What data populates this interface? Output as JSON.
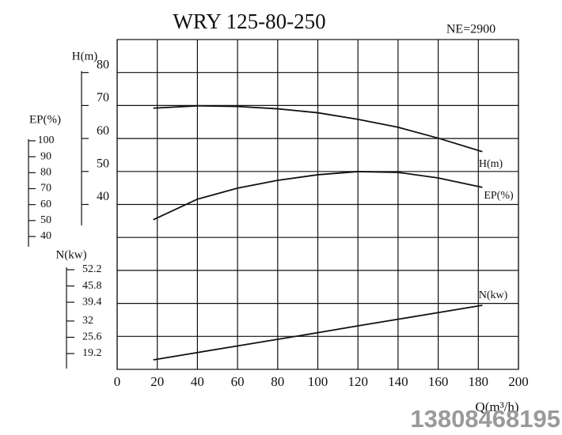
{
  "chart_data": {
    "type": "line",
    "title": "WRY 125-80-250",
    "subtitle": "NE=2900",
    "x_label": "Q(m³/h)",
    "xlim": [
      0,
      200
    ],
    "xticks": [
      0,
      20,
      40,
      60,
      80,
      100,
      120,
      140,
      160,
      180,
      200
    ],
    "grid": true,
    "axes": [
      {
        "label": "H(m)",
        "ylim": [
          40,
          80
        ],
        "yticks": [
          40,
          50,
          60,
          70,
          80
        ]
      },
      {
        "label": "EP(%)",
        "ylim": [
          40,
          100
        ],
        "yticks": [
          40,
          50,
          60,
          70,
          80,
          90,
          100
        ]
      },
      {
        "label": "N(kw)",
        "ylim": [
          19.2,
          52.2
        ],
        "yticks": [
          19.2,
          25.6,
          32,
          39.4,
          45.8,
          52.2
        ]
      }
    ],
    "x": [
      18,
      40,
      60,
      80,
      100,
      120,
      140,
      160,
      182
    ],
    "series": [
      {
        "name": "H(m)",
        "color": "#111111",
        "axis": 0,
        "values": [
          69.2,
          69.9,
          69.7,
          69.0,
          67.8,
          65.8,
          63.4,
          60.1,
          56.0
        ]
      },
      {
        "name": "EP(%)",
        "color": "#111111",
        "axis": 1,
        "values": [
          50.5,
          63.4,
          70.3,
          75.2,
          78.7,
          80.7,
          80.2,
          76.7,
          70.8
        ]
      },
      {
        "name": "N(kw)",
        "color": "#111111",
        "axis": 2,
        "values": [
          16.7,
          19.6,
          22.2,
          24.8,
          27.4,
          30.1,
          32.7,
          35.3,
          38.2
        ]
      }
    ]
  },
  "watermark": "13808468195"
}
